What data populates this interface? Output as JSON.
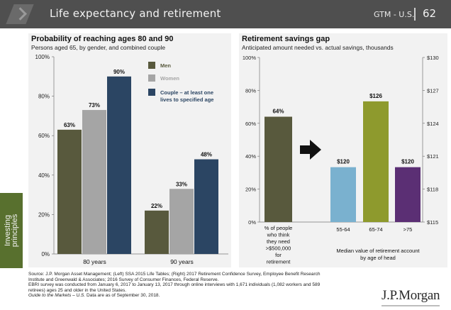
{
  "header": {
    "title": "Life expectancy and retirement",
    "section": "GTM - U.S.",
    "page_number": "62"
  },
  "side_tab": {
    "line1": "Investing",
    "line2": "principles"
  },
  "colors": {
    "men": "#58593d",
    "women": "#a5a5a5",
    "couple": "#2b4563",
    "percent_think": "#58593d",
    "age_55_64": "#7ab1cf",
    "age_65_74": "#8e9a2d",
    "age_75_plus": "#5b2f74"
  },
  "chart_data": [
    {
      "type": "bar",
      "title": "Probability of reaching ages 80 and 90",
      "subtitle": "Persons aged 65, by gender, and combined couple",
      "categories": [
        "80 years",
        "90 years"
      ],
      "series": [
        {
          "name": "Men",
          "values": [
            63,
            22
          ],
          "labels": [
            "63%",
            "22%"
          ]
        },
        {
          "name": "Women",
          "values": [
            73,
            33
          ],
          "labels": [
            "73%",
            "33%"
          ]
        },
        {
          "name": "Couple - at least one lives to specified age",
          "legend_lines": [
            "Couple – at least one",
            "lives to specified age"
          ],
          "values": [
            90,
            48
          ],
          "labels": [
            "90%",
            "48%"
          ]
        }
      ],
      "y_ticks": [
        "0%",
        "20%",
        "40%",
        "60%",
        "80%",
        "100%"
      ],
      "ylim": [
        0,
        100
      ]
    },
    {
      "type": "bar",
      "title": "Retirement savings gap",
      "subtitle": "Anticipated amount needed vs. actual savings, thousands",
      "left_bar": {
        "value": 64,
        "label": "64%",
        "category_lines": [
          "% of people",
          "who think",
          "they need",
          ">$500,000",
          "for",
          "retirement"
        ]
      },
      "left_axis": {
        "ticks": [
          "0%",
          "20%",
          "40%",
          "60%",
          "80%",
          "100%"
        ],
        "ylim": [
          0,
          100
        ]
      },
      "right_bars": [
        {
          "category": "55-64",
          "value": 120,
          "label": "$120"
        },
        {
          "category": "65-74",
          "value": 126,
          "label": "$126"
        },
        {
          "category": ">75",
          "value": 120,
          "label": "$120"
        }
      ],
      "right_axis": {
        "ticks": [
          "$115",
          "$118",
          "$121",
          "$124",
          "$127",
          "$130"
        ],
        "ylim": [
          115,
          130
        ]
      },
      "right_xlabel_lines": [
        "Median value of retirement account",
        "by age of head"
      ]
    }
  ],
  "source": {
    "lines": [
      "Source: J.P. Morgan Asset Management; (Left) SSA 2015 Life Tables; (Right) 2017 Retirement Confidence Survey, Employee Benefit Research",
      "Institute and Greenwald & Associates; 2016 Survey of Consumer Finances, Federal Reserve.",
      "EBRI survey was conducted from January 6, 2017 to January 13, 2017 through online interviews with 1,671 individuals (1,082 workers and 589",
      "retirees) ages 25 and older in the United States."
    ],
    "guide_title": "Guide to the Markets – U.S.",
    "guide_rest": " Data are as of September 30, 2018."
  },
  "logo": "J.P.Morgan"
}
